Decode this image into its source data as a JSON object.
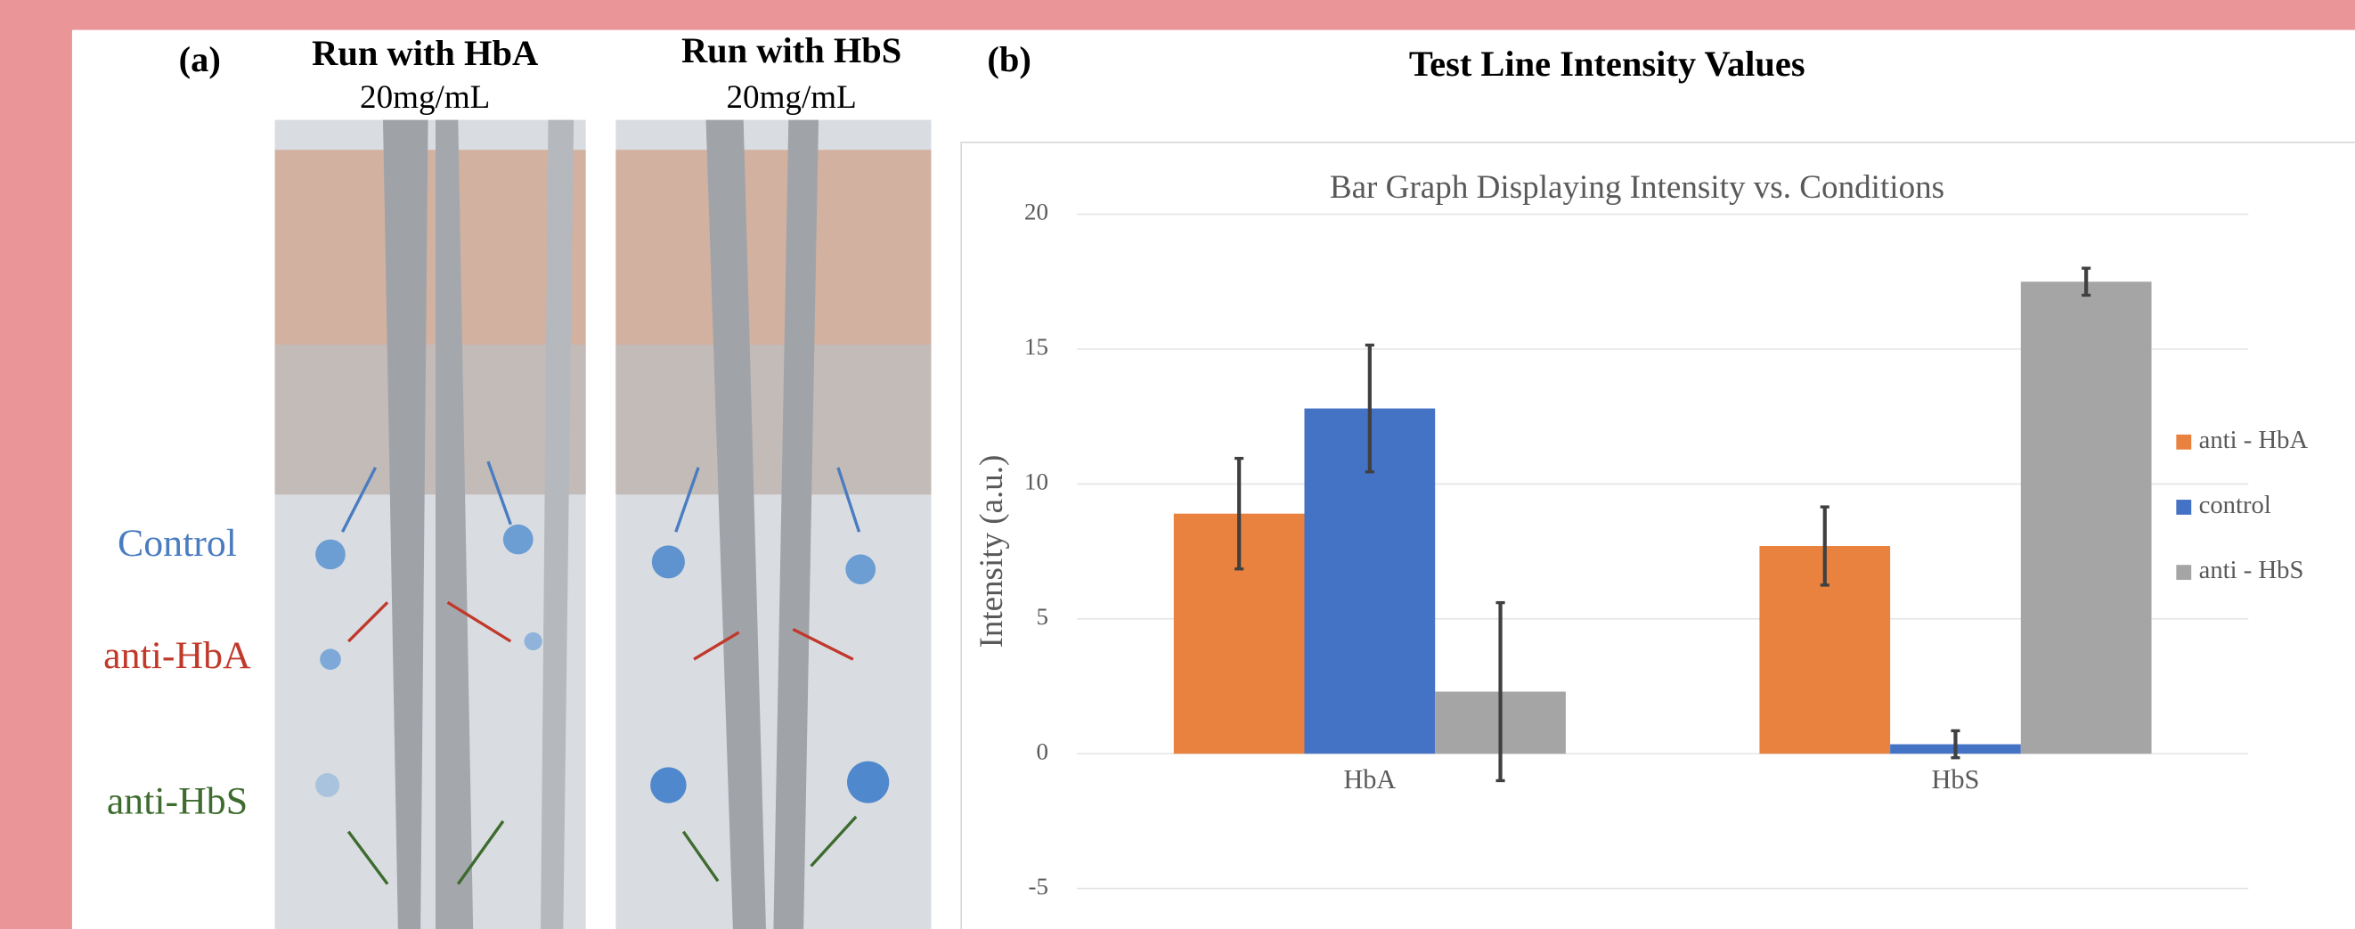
{
  "panel_a": {
    "label": "(a)",
    "strips": [
      {
        "title": "Run with HbA",
        "concentration": "20mg/mL"
      },
      {
        "title": "Run with HbS",
        "concentration": "20mg/mL"
      }
    ],
    "line_labels": [
      "Control",
      "anti-HbA",
      "anti-HbS"
    ]
  },
  "panel_b": {
    "label": "(b)",
    "heading": "Test Line Intensity Values"
  },
  "chart_data": {
    "type": "bar",
    "title": "Bar Graph Displaying Intensity vs. Conditions",
    "y_label": "Intensity (a.u.)",
    "categories": [
      "HbA",
      "HbS"
    ],
    "series": [
      {
        "name": "anti - HbA",
        "color": "#e8823e",
        "values": [
          8.9,
          7.7
        ],
        "errors": [
          2.05,
          1.45
        ]
      },
      {
        "name": "control",
        "color": "#4472c4",
        "values": [
          12.8,
          0.35
        ],
        "errors": [
          2.35,
          0.5
        ]
      },
      {
        "name": "anti - HbS",
        "color": "#a5a5a5",
        "values": [
          2.3,
          17.5
        ],
        "errors": [
          3.3,
          0.5
        ]
      }
    ],
    "ylim": [
      -5,
      20
    ],
    "yticks": [
      -5,
      0,
      5,
      10,
      15,
      20
    ],
    "grid": true,
    "legend": "right"
  }
}
